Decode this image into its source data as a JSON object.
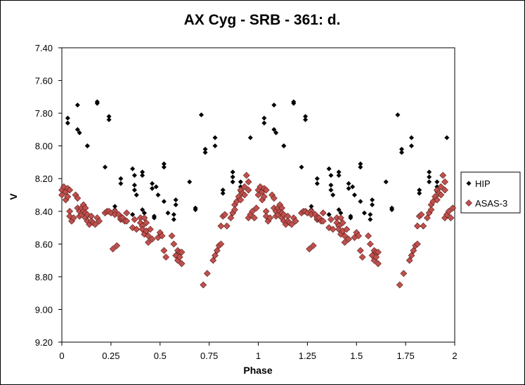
{
  "chart_data": {
    "type": "scatter",
    "title": "AX Cyg - SRB - 361: d.",
    "xlabel": "Phase",
    "ylabel": "V",
    "xlim": [
      0,
      2
    ],
    "ylim": [
      7.4,
      9.2
    ],
    "y_inverted": true,
    "grid": false,
    "legend": "right",
    "x_ticks": [
      "0",
      "0.25",
      "0.5",
      "0.75",
      "1",
      "1.25",
      "1.5",
      "1.75",
      "2"
    ],
    "y_ticks": [
      "7.40",
      "7.60",
      "7.80",
      "8.00",
      "8.20",
      "8.40",
      "8.60",
      "8.80",
      "9.00",
      "9.20"
    ],
    "series": [
      {
        "name": "HIP",
        "color": "#000000",
        "marker": "diamond",
        "points": [
          [
            0.03,
            7.83
          ],
          [
            0.03,
            7.86
          ],
          [
            0.08,
            7.75
          ],
          [
            0.08,
            7.9
          ],
          [
            0.09,
            7.92
          ],
          [
            0.13,
            8.0
          ],
          [
            0.13,
            8.0
          ],
          [
            0.18,
            7.73
          ],
          [
            0.18,
            7.74
          ],
          [
            0.22,
            8.13
          ],
          [
            0.24,
            7.82
          ],
          [
            0.24,
            7.84
          ],
          [
            0.27,
            8.37
          ],
          [
            0.27,
            8.39
          ],
          [
            0.3,
            8.2
          ],
          [
            0.3,
            8.23
          ],
          [
            0.36,
            8.42
          ],
          [
            0.36,
            8.42
          ],
          [
            0.36,
            8.14
          ],
          [
            0.37,
            8.18
          ],
          [
            0.37,
            8.24
          ],
          [
            0.37,
            8.27
          ],
          [
            0.38,
            8.3
          ],
          [
            0.41,
            8.16
          ],
          [
            0.41,
            8.18
          ],
          [
            0.41,
            8.39
          ],
          [
            0.42,
            8.41
          ],
          [
            0.46,
            8.23
          ],
          [
            0.46,
            8.26
          ],
          [
            0.47,
            8.43
          ],
          [
            0.47,
            8.44
          ],
          [
            0.48,
            8.25
          ],
          [
            0.49,
            8.3
          ],
          [
            0.52,
            8.11
          ],
          [
            0.52,
            8.13
          ],
          [
            0.52,
            8.34
          ],
          [
            0.54,
            8.41
          ],
          [
            0.57,
            8.42
          ],
          [
            0.57,
            8.45
          ],
          [
            0.58,
            8.33
          ],
          [
            0.58,
            8.36
          ],
          [
            0.65,
            8.22
          ],
          [
            0.68,
            8.39
          ],
          [
            0.68,
            8.38
          ],
          [
            0.71,
            7.81
          ],
          [
            0.73,
            8.02
          ],
          [
            0.73,
            8.04
          ],
          [
            0.78,
            7.95
          ],
          [
            0.78,
            8.0
          ],
          [
            0.82,
            8.27
          ],
          [
            0.82,
            8.29
          ],
          [
            0.87,
            8.16
          ],
          [
            0.87,
            8.19
          ],
          [
            0.87,
            8.22
          ],
          [
            0.91,
            8.22
          ],
          [
            0.91,
            8.25
          ],
          [
            0.91,
            8.28
          ],
          [
            0.96,
            7.95
          ]
        ]
      },
      {
        "name": "ASAS-3",
        "color": "#c0504d",
        "marker": "diamond",
        "points": [
          [
            0.0,
            8.27
          ],
          [
            0.0,
            8.3
          ],
          [
            0.01,
            8.25
          ],
          [
            0.02,
            8.28
          ],
          [
            0.02,
            8.33
          ],
          [
            0.03,
            8.26
          ],
          [
            0.03,
            8.31
          ],
          [
            0.04,
            8.27
          ],
          [
            0.04,
            8.4
          ],
          [
            0.04,
            8.43
          ],
          [
            0.05,
            8.46
          ],
          [
            0.06,
            8.44
          ],
          [
            0.07,
            8.3
          ],
          [
            0.08,
            8.32
          ],
          [
            0.08,
            8.38
          ],
          [
            0.09,
            8.4
          ],
          [
            0.09,
            8.43
          ],
          [
            0.1,
            8.38
          ],
          [
            0.1,
            8.42
          ],
          [
            0.11,
            8.36
          ],
          [
            0.11,
            8.4
          ],
          [
            0.12,
            8.38
          ],
          [
            0.12,
            8.41
          ],
          [
            0.12,
            8.44
          ],
          [
            0.13,
            8.42
          ],
          [
            0.13,
            8.46
          ],
          [
            0.14,
            8.48
          ],
          [
            0.15,
            8.43
          ],
          [
            0.15,
            8.46
          ],
          [
            0.16,
            8.47
          ],
          [
            0.17,
            8.48
          ],
          [
            0.18,
            8.44
          ],
          [
            0.19,
            8.46
          ],
          [
            0.22,
            8.41
          ],
          [
            0.23,
            8.4
          ],
          [
            0.24,
            8.4
          ],
          [
            0.25,
            8.41
          ],
          [
            0.26,
            8.63
          ],
          [
            0.27,
            8.4
          ],
          [
            0.27,
            8.42
          ],
          [
            0.28,
            8.61
          ],
          [
            0.29,
            8.42
          ],
          [
            0.3,
            8.45
          ],
          [
            0.3,
            8.44
          ],
          [
            0.31,
            8.44
          ],
          [
            0.32,
            8.46
          ],
          [
            0.33,
            8.41
          ],
          [
            0.33,
            8.46
          ],
          [
            0.36,
            8.5
          ],
          [
            0.37,
            8.45
          ],
          [
            0.38,
            8.51
          ],
          [
            0.4,
            8.44
          ],
          [
            0.4,
            8.47
          ],
          [
            0.41,
            8.49
          ],
          [
            0.41,
            8.51
          ],
          [
            0.42,
            8.54
          ],
          [
            0.42,
            8.44
          ],
          [
            0.43,
            8.47
          ],
          [
            0.43,
            8.52
          ],
          [
            0.44,
            8.55
          ],
          [
            0.44,
            8.59
          ],
          [
            0.45,
            8.51
          ],
          [
            0.46,
            8.57
          ],
          [
            0.49,
            8.56
          ],
          [
            0.5,
            8.53
          ],
          [
            0.51,
            8.55
          ],
          [
            0.52,
            8.64
          ],
          [
            0.53,
            8.68
          ],
          [
            0.56,
            8.55
          ],
          [
            0.57,
            8.6
          ],
          [
            0.58,
            8.67
          ],
          [
            0.59,
            8.64
          ],
          [
            0.59,
            8.7
          ],
          [
            0.6,
            8.65
          ],
          [
            0.6,
            8.68
          ],
          [
            0.61,
            8.72
          ],
          [
            0.61,
            8.65
          ],
          [
            0.72,
            8.85
          ],
          [
            0.74,
            8.78
          ],
          [
            0.77,
            8.7
          ],
          [
            0.78,
            8.67
          ],
          [
            0.79,
            8.64
          ],
          [
            0.8,
            8.61
          ],
          [
            0.81,
            8.6
          ],
          [
            0.81,
            8.49
          ],
          [
            0.82,
            8.43
          ],
          [
            0.83,
            8.42
          ],
          [
            0.84,
            8.49
          ],
          [
            0.86,
            8.44
          ],
          [
            0.87,
            8.41
          ],
          [
            0.88,
            8.36
          ],
          [
            0.88,
            8.39
          ],
          [
            0.89,
            8.34
          ],
          [
            0.9,
            8.31
          ],
          [
            0.91,
            8.33
          ],
          [
            0.91,
            8.27
          ],
          [
            0.92,
            8.29
          ],
          [
            0.93,
            8.3
          ],
          [
            0.93,
            8.25
          ],
          [
            0.94,
            8.18
          ],
          [
            0.95,
            8.22
          ],
          [
            0.95,
            8.27
          ],
          [
            0.95,
            8.44
          ],
          [
            0.96,
            8.42
          ],
          [
            0.97,
            8.4
          ],
          [
            0.98,
            8.44
          ],
          [
            0.99,
            8.38
          ]
        ]
      }
    ]
  }
}
